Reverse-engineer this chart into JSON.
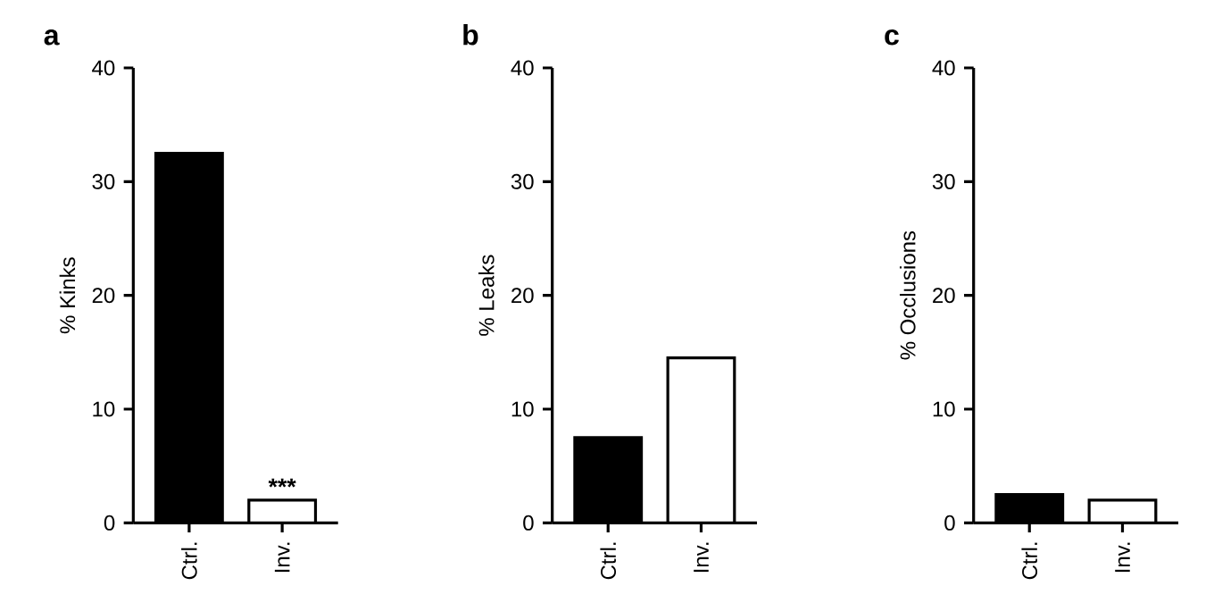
{
  "chart_data": [
    {
      "type": "bar",
      "title": "a",
      "ylabel": "% Kinks",
      "categories": [
        "Ctrl.",
        "Inv."
      ],
      "values": [
        32.5,
        2
      ],
      "colors": [
        "#000000",
        "#ffffff"
      ],
      "ylim": [
        0,
        40
      ],
      "yticks": [
        0,
        10,
        20,
        30,
        40
      ],
      "annotations": [
        {
          "text": "***",
          "x": "Inv.",
          "y": 2
        }
      ]
    },
    {
      "type": "bar",
      "title": "b",
      "ylabel": "% Leaks",
      "categories": [
        "Ctrl.",
        "Inv."
      ],
      "values": [
        7.5,
        14.5
      ],
      "colors": [
        "#000000",
        "#ffffff"
      ],
      "ylim": [
        0,
        40
      ],
      "yticks": [
        0,
        10,
        20,
        30,
        40
      ]
    },
    {
      "type": "bar",
      "title": "c",
      "ylabel": "%  Occlusions",
      "categories": [
        "Ctrl.",
        "Inv."
      ],
      "values": [
        2.5,
        2
      ],
      "colors": [
        "#000000",
        "#ffffff"
      ],
      "ylim": [
        0,
        40
      ],
      "yticks": [
        0,
        10,
        20,
        30,
        40
      ]
    }
  ]
}
